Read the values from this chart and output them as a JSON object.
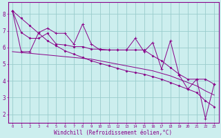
{
  "x_values": [
    0,
    1,
    2,
    3,
    4,
    5,
    6,
    7,
    8,
    9,
    10,
    11,
    12,
    13,
    14,
    15,
    16,
    17,
    18,
    19,
    20,
    21,
    22,
    23
  ],
  "series_main": [
    8.2,
    5.75,
    5.75,
    6.9,
    7.15,
    6.85,
    6.85,
    6.2,
    7.4,
    6.2,
    5.85,
    5.85,
    5.85,
    5.85,
    6.55,
    5.75,
    6.3,
    4.7,
    6.4,
    4.35,
    3.5,
    4.1,
    1.75,
    3.8
  ],
  "series_smooth": [
    8.2,
    6.9,
    6.55,
    6.55,
    6.85,
    6.2,
    6.15,
    6.05,
    6.05,
    5.9,
    5.9,
    5.85,
    5.85,
    5.85,
    5.85,
    5.85,
    5.5,
    5.2,
    4.8,
    4.4,
    4.1,
    4.1,
    4.1,
    3.8
  ],
  "series_linear_steep": [
    8.2,
    7.75,
    7.3,
    6.85,
    6.4,
    6.1,
    5.8,
    5.6,
    5.4,
    5.2,
    5.05,
    4.9,
    4.75,
    4.6,
    4.5,
    4.4,
    4.25,
    4.1,
    3.9,
    3.7,
    3.5,
    3.3,
    2.8,
    2.45
  ],
  "series_linear_shallow": [
    5.75,
    5.7,
    5.65,
    5.6,
    5.55,
    5.5,
    5.45,
    5.4,
    5.35,
    5.3,
    5.2,
    5.1,
    5.0,
    4.9,
    4.8,
    4.7,
    4.6,
    4.45,
    4.3,
    4.1,
    3.9,
    3.7,
    3.4,
    3.15
  ],
  "color": "#880088",
  "bg_color": "#cceeee",
  "grid_color": "#99cccc",
  "xlabel": "Windchill (Refroidissement éolien,°C)",
  "xlim_min": -0.5,
  "xlim_max": 23.5,
  "ylim_min": 1.5,
  "ylim_max": 8.7,
  "yticks": [
    2,
    3,
    4,
    5,
    6,
    7,
    8
  ],
  "xticks": [
    0,
    1,
    2,
    3,
    4,
    5,
    6,
    7,
    8,
    9,
    10,
    11,
    12,
    13,
    14,
    15,
    16,
    17,
    18,
    19,
    20,
    21,
    22,
    23
  ]
}
